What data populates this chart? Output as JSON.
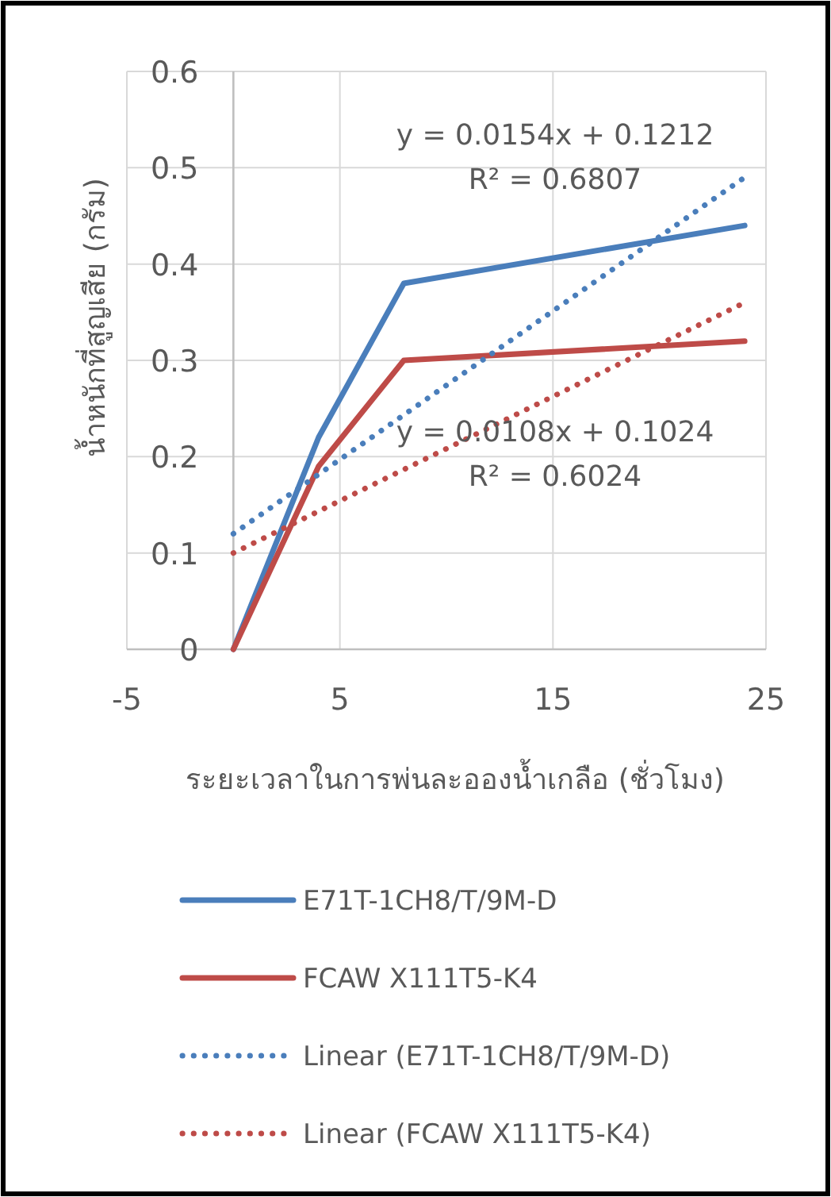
{
  "chart_data": {
    "type": "line",
    "xlabel": "ระยะเวลาในการพ่นละอองน้ำเกลือ (ชั่วโมง)",
    "ylabel": "น้ำหนักที่สูญเสีย (กรัม)",
    "xlim": [
      -5,
      25
    ],
    "xticks": [
      -5,
      5,
      15,
      25
    ],
    "ylim": [
      0,
      0.6
    ],
    "yticks": [
      0,
      0.1,
      0.2,
      0.3,
      0.4,
      0.5,
      0.6
    ],
    "grid": true,
    "legend": "bottom",
    "marker": "none",
    "series": [
      {
        "name": "E71T-1CH8/T/9M-D",
        "color": "#4a7ebb",
        "x": [
          0,
          4,
          8,
          24
        ],
        "values": [
          0,
          0.22,
          0.38,
          0.44
        ],
        "line_style": "solid"
      },
      {
        "name": "FCAW X111T5-K4",
        "color": "#be4b48",
        "x": [
          0,
          4,
          8,
          24
        ],
        "values": [
          0,
          0.19,
          0.3,
          0.32
        ],
        "line_style": "solid"
      },
      {
        "name": "Linear (E71T-1CH8/T/9M-D)",
        "color": "#4a7ebb",
        "x": [
          0,
          24
        ],
        "values": [
          0.12,
          0.49
        ],
        "line_style": "dotted"
      },
      {
        "name": "Linear (FCAW X111T5-K4)",
        "color": "#be4b48",
        "x": [
          0,
          24
        ],
        "values": [
          0.1,
          0.36
        ],
        "line_style": "dotted"
      }
    ],
    "annotations": [
      "y = 0.0154x + 0.1212",
      "R² = 0.6807",
      "y = 0.0108x + 0.1024",
      "R² = 0.6024"
    ]
  }
}
